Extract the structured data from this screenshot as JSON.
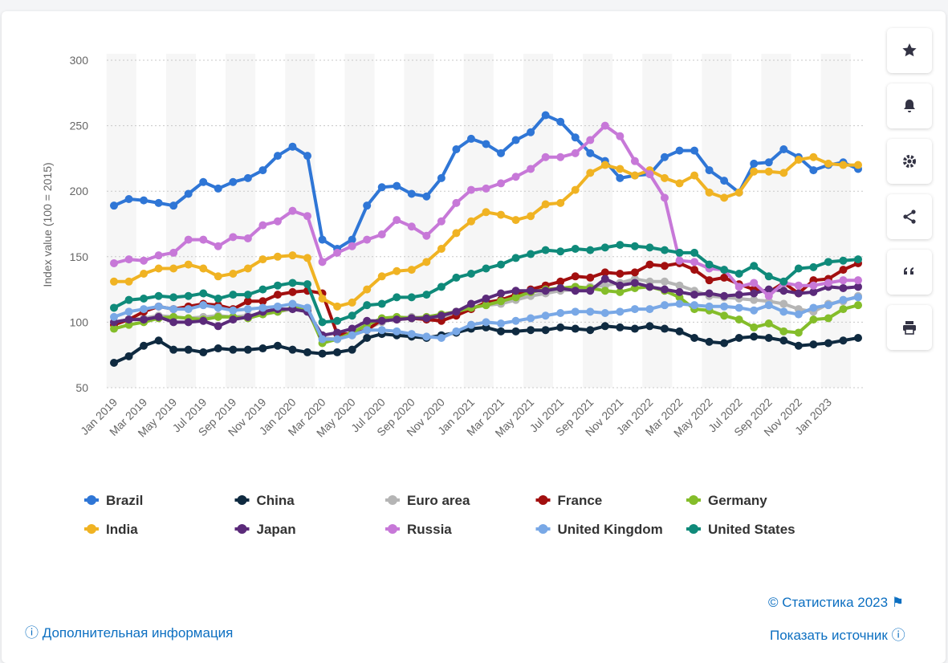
{
  "chart_data": {
    "type": "line",
    "y_label": "Index value (100 = 2015)",
    "categories": [
      "Jan 2019",
      null,
      "Mar 2019",
      null,
      "May 2019",
      null,
      "Jul 2019",
      null,
      "Sep 2019",
      null,
      "Nov 2019",
      null,
      "Jan 2020",
      null,
      "Mar 2020",
      null,
      "May 2020",
      null,
      "Jul 2020",
      null,
      "Sep 2020",
      null,
      "Nov 2020",
      null,
      "Jan 2021",
      null,
      "Mar 2021",
      null,
      "May 2021",
      null,
      "Jul 2021",
      null,
      "Sep 2021",
      null,
      "Nov 2021",
      null,
      "Jan 2022",
      null,
      "Mar 2022",
      null,
      "May 2022",
      null,
      "Jul 2022",
      null,
      "Sep 2022",
      null,
      "Nov 2022",
      null,
      "Jan 2023",
      null,
      null
    ],
    "ylim": [
      50,
      300
    ],
    "yticks": [
      50,
      100,
      150,
      200,
      250,
      300
    ],
    "grid": true,
    "series": [
      {
        "name": "Brazil",
        "color": "#2f76d6",
        "values": [
          189,
          194,
          193,
          191,
          189,
          198,
          207,
          202,
          207,
          210,
          216,
          227,
          234,
          227,
          163,
          156,
          163,
          189,
          203,
          204,
          198,
          196,
          210,
          232,
          240,
          236,
          229,
          239,
          245,
          258,
          253,
          241,
          229,
          223,
          210,
          212,
          213,
          226,
          231,
          231,
          216,
          208,
          199,
          221,
          222,
          232,
          226,
          216,
          220,
          222,
          217
        ]
      },
      {
        "name": "China",
        "color": "#0f2a40",
        "values": [
          69,
          74,
          82,
          86,
          79,
          79,
          77,
          80,
          79,
          79,
          80,
          82,
          79,
          77,
          76,
          77,
          79,
          88,
          91,
          90,
          89,
          88,
          90,
          92,
          95,
          96,
          93,
          93,
          94,
          94,
          96,
          95,
          94,
          97,
          96,
          95,
          97,
          95,
          93,
          88,
          85,
          84,
          88,
          89,
          88,
          86,
          82,
          83,
          84,
          86,
          88
        ]
      },
      {
        "name": "Euro area",
        "color": "#b5b5b5",
        "values": [
          100,
          102,
          103,
          105,
          104,
          103,
          104,
          105,
          104,
          105,
          106,
          108,
          110,
          108,
          88,
          87,
          90,
          95,
          100,
          103,
          104,
          103,
          104,
          107,
          111,
          113,
          114,
          117,
          120,
          122,
          124,
          125,
          127,
          128,
          130,
          133,
          131,
          131,
          128,
          124,
          120,
          119,
          118,
          117,
          116,
          114,
          110,
          108,
          114,
          116,
          120
        ]
      },
      {
        "name": "France",
        "color": "#a20f0f",
        "values": [
          98,
          102,
          108,
          112,
          110,
          112,
          114,
          113,
          110,
          116,
          116,
          121,
          123,
          124,
          122,
          91,
          91,
          94,
          102,
          102,
          103,
          102,
          101,
          105,
          110,
          115,
          117,
          121,
          125,
          128,
          131,
          135,
          134,
          138,
          137,
          138,
          144,
          143,
          145,
          140,
          132,
          134,
          129,
          125,
          123,
          130,
          122,
          132,
          133,
          140,
          145
        ]
      },
      {
        "name": "Germany",
        "color": "#84bd2a",
        "values": [
          95,
          98,
          100,
          103,
          104,
          103,
          102,
          104,
          104,
          103,
          106,
          108,
          111,
          110,
          84,
          87,
          92,
          98,
          103,
          104,
          103,
          104,
          106,
          108,
          111,
          113,
          116,
          119,
          123,
          125,
          126,
          127,
          126,
          124,
          123,
          126,
          127,
          124,
          119,
          110,
          109,
          105,
          102,
          96,
          99,
          93,
          92,
          102,
          103,
          110,
          113
        ]
      },
      {
        "name": "India",
        "color": "#f0b323",
        "values": [
          131,
          131,
          137,
          141,
          141,
          144,
          141,
          135,
          137,
          141,
          148,
          150,
          151,
          149,
          118,
          112,
          115,
          125,
          135,
          139,
          140,
          146,
          156,
          168,
          177,
          184,
          182,
          178,
          181,
          190,
          191,
          201,
          214,
          220,
          217,
          212,
          216,
          210,
          206,
          212,
          199,
          195,
          199,
          215,
          215,
          214,
          224,
          226,
          221,
          220,
          220
        ]
      },
      {
        "name": "Japan",
        "color": "#5b2a7a",
        "values": [
          100,
          102,
          102,
          104,
          100,
          100,
          101,
          97,
          102,
          104,
          108,
          110,
          110,
          108,
          90,
          92,
          95,
          101,
          101,
          102,
          103,
          103,
          105,
          108,
          114,
          118,
          122,
          124,
          124,
          124,
          126,
          124,
          124,
          133,
          128,
          130,
          127,
          125,
          123,
          121,
          122,
          120,
          121,
          122,
          125,
          124,
          122,
          123,
          127,
          126,
          127
        ]
      },
      {
        "name": "Russia",
        "color": "#c778d8",
        "values": [
          145,
          148,
          147,
          151,
          153,
          163,
          163,
          158,
          165,
          164,
          174,
          177,
          185,
          181,
          146,
          153,
          158,
          163,
          167,
          178,
          173,
          166,
          177,
          191,
          201,
          202,
          206,
          211,
          217,
          226,
          226,
          229,
          239,
          250,
          242,
          223,
          213,
          195,
          147,
          146,
          141,
          140,
          127,
          130,
          120,
          130,
          128,
          128,
          130,
          132,
          132
        ]
      },
      {
        "name": "United Kingdom",
        "color": "#79a8e6",
        "values": [
          104,
          108,
          110,
          112,
          110,
          110,
          113,
          111,
          109,
          110,
          111,
          112,
          114,
          111,
          87,
          87,
          90,
          94,
          94,
          93,
          91,
          89,
          88,
          93,
          98,
          100,
          99,
          101,
          103,
          105,
          107,
          108,
          108,
          107,
          108,
          110,
          110,
          113,
          114,
          113,
          112,
          112,
          111,
          109,
          113,
          108,
          106,
          111,
          113,
          117,
          119
        ]
      },
      {
        "name": "United States",
        "color": "#0f8a7a",
        "values": [
          111,
          117,
          118,
          120,
          119,
          120,
          122,
          118,
          121,
          121,
          125,
          128,
          130,
          129,
          100,
          101,
          105,
          113,
          114,
          119,
          119,
          121,
          127,
          134,
          137,
          141,
          144,
          149,
          152,
          155,
          154,
          156,
          155,
          157,
          159,
          158,
          157,
          155,
          153,
          153,
          144,
          140,
          137,
          143,
          135,
          131,
          141,
          142,
          146,
          147,
          148
        ]
      }
    ]
  },
  "footer": {
    "copyright": "© Статистика 2023",
    "more_info": "Дополнительная информация",
    "show_source": "Показать источник"
  }
}
